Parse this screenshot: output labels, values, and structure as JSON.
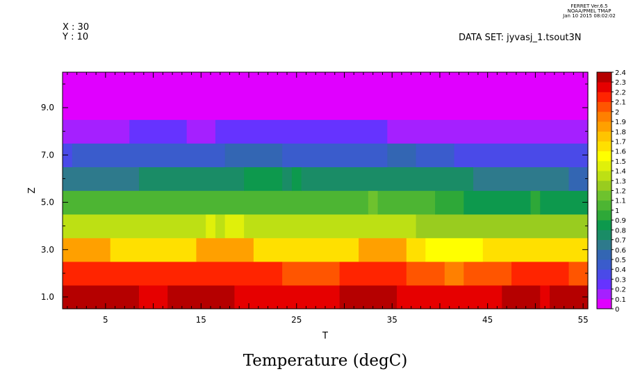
{
  "header": {
    "x_label": "X : 30",
    "y_label": "Y : 10",
    "dataset": "DATA SET: jyvasj_1.tsout3N",
    "ferret_line1": "FERRET  Ver.6.5",
    "ferret_line2": "NOAA/PMEL TMAP",
    "ferret_line3": "Jan 10 2015 08:02:02"
  },
  "chart_data": {
    "type": "heatmap",
    "title": "Temperature (degC)",
    "xlabel": "T",
    "ylabel": "Z",
    "xlim": [
      0.5,
      55.5
    ],
    "ylim": [
      0.5,
      10.5
    ],
    "x_ticks": [
      5,
      15,
      25,
      35,
      45,
      55
    ],
    "y_ticks": [
      1.0,
      3.0,
      5.0,
      7.0,
      9.0
    ],
    "y_tick_labels": [
      "1.0",
      "3.0",
      "5.0",
      "7.0",
      "9.0"
    ],
    "colorbar": {
      "min": 0,
      "max": 2.4,
      "step": 0.1,
      "labels": [
        "0",
        "0.1",
        "0.2",
        "0.3",
        "0.4",
        "0.5",
        "0.6",
        "0.7",
        "0.8",
        "0.9",
        "1",
        "1.1",
        "1.2",
        "1.3",
        "1.4",
        "1.5",
        "1.6",
        "1.7",
        "1.8",
        "1.9",
        "2",
        "2.1",
        "2.2",
        "2.3",
        "2.4"
      ],
      "colors": [
        "#e000ff",
        "#a520ff",
        "#6633ff",
        "#4a4ae8",
        "#3a5ccc",
        "#3366b3",
        "#2e7a8c",
        "#1a8c66",
        "#0d994d",
        "#2ea838",
        "#4db533",
        "#6ec22e",
        "#99cc1f",
        "#bde014",
        "#e0f00a",
        "#ffff00",
        "#ffe000",
        "#ffc400",
        "#ffa000",
        "#ff8000",
        "#ff5500",
        "#ff2400",
        "#e60000",
        "#b50000"
      ]
    },
    "rows": [
      {
        "z": 1,
        "segments": [
          [
            0.5,
            8.5,
            2.35
          ],
          [
            8.5,
            11.5,
            2.25
          ],
          [
            11.5,
            18.5,
            2.35
          ],
          [
            18.5,
            29.5,
            2.25
          ],
          [
            29.5,
            35.5,
            2.35
          ],
          [
            35.5,
            46.5,
            2.25
          ],
          [
            46.5,
            50.5,
            2.35
          ],
          [
            50.5,
            51.5,
            2.25
          ],
          [
            51.5,
            55.5,
            2.35
          ]
        ]
      },
      {
        "z": 2,
        "segments": [
          [
            0.5,
            23.5,
            2.15
          ],
          [
            23.5,
            29.5,
            2.05
          ],
          [
            29.5,
            36.5,
            2.15
          ],
          [
            36.5,
            40.5,
            2.05
          ],
          [
            40.5,
            42.5,
            1.95
          ],
          [
            42.5,
            47.5,
            2.05
          ],
          [
            47.5,
            53.5,
            2.15
          ],
          [
            53.5,
            55.5,
            2.05
          ]
        ]
      },
      {
        "z": 3,
        "segments": [
          [
            0.5,
            5.5,
            1.85
          ],
          [
            5.5,
            14.5,
            1.65
          ],
          [
            14.5,
            20.5,
            1.85
          ],
          [
            20.5,
            31.5,
            1.65
          ],
          [
            31.5,
            36.5,
            1.85
          ],
          [
            36.5,
            38.5,
            1.65
          ],
          [
            38.5,
            44.5,
            1.55
          ],
          [
            44.5,
            55.5,
            1.65
          ]
        ]
      },
      {
        "z": 4,
        "segments": [
          [
            0.5,
            15.5,
            1.35
          ],
          [
            15.5,
            16.5,
            1.45
          ],
          [
            16.5,
            17.5,
            1.35
          ],
          [
            17.5,
            19.5,
            1.45
          ],
          [
            19.5,
            37.5,
            1.35
          ],
          [
            37.5,
            55.5,
            1.25
          ]
        ]
      },
      {
        "z": 5,
        "segments": [
          [
            0.5,
            32.5,
            1.05
          ],
          [
            32.5,
            33.5,
            1.15
          ],
          [
            33.5,
            39.5,
            1.05
          ],
          [
            39.5,
            42.5,
            0.95
          ],
          [
            42.5,
            49.5,
            0.85
          ],
          [
            49.5,
            50.5,
            0.95
          ],
          [
            50.5,
            55.5,
            0.85
          ]
        ]
      },
      {
        "z": 6,
        "segments": [
          [
            0.5,
            8.5,
            0.65
          ],
          [
            8.5,
            19.5,
            0.75
          ],
          [
            19.5,
            23.5,
            0.85
          ],
          [
            23.5,
            24.5,
            0.75
          ],
          [
            24.5,
            25.5,
            0.85
          ],
          [
            25.5,
            43.5,
            0.75
          ],
          [
            43.5,
            53.5,
            0.65
          ],
          [
            53.5,
            55.5,
            0.55
          ]
        ]
      },
      {
        "z": 7,
        "segments": [
          [
            0.5,
            1.5,
            0.35
          ],
          [
            1.5,
            17.5,
            0.45
          ],
          [
            17.5,
            23.5,
            0.55
          ],
          [
            23.5,
            34.5,
            0.45
          ],
          [
            34.5,
            37.5,
            0.55
          ],
          [
            37.5,
            41.5,
            0.45
          ],
          [
            41.5,
            55.5,
            0.35
          ]
        ]
      },
      {
        "z": 8,
        "segments": [
          [
            0.5,
            7.5,
            0.15
          ],
          [
            7.5,
            13.5,
            0.25
          ],
          [
            13.5,
            16.5,
            0.15
          ],
          [
            16.5,
            34.5,
            0.25
          ],
          [
            34.5,
            55.5,
            0.15
          ]
        ]
      },
      {
        "z": 9,
        "segments": [
          [
            0.5,
            55.5,
            0.05
          ]
        ]
      },
      {
        "z": 10,
        "segments": [
          [
            0.5,
            55.5,
            0.05
          ]
        ]
      }
    ]
  }
}
